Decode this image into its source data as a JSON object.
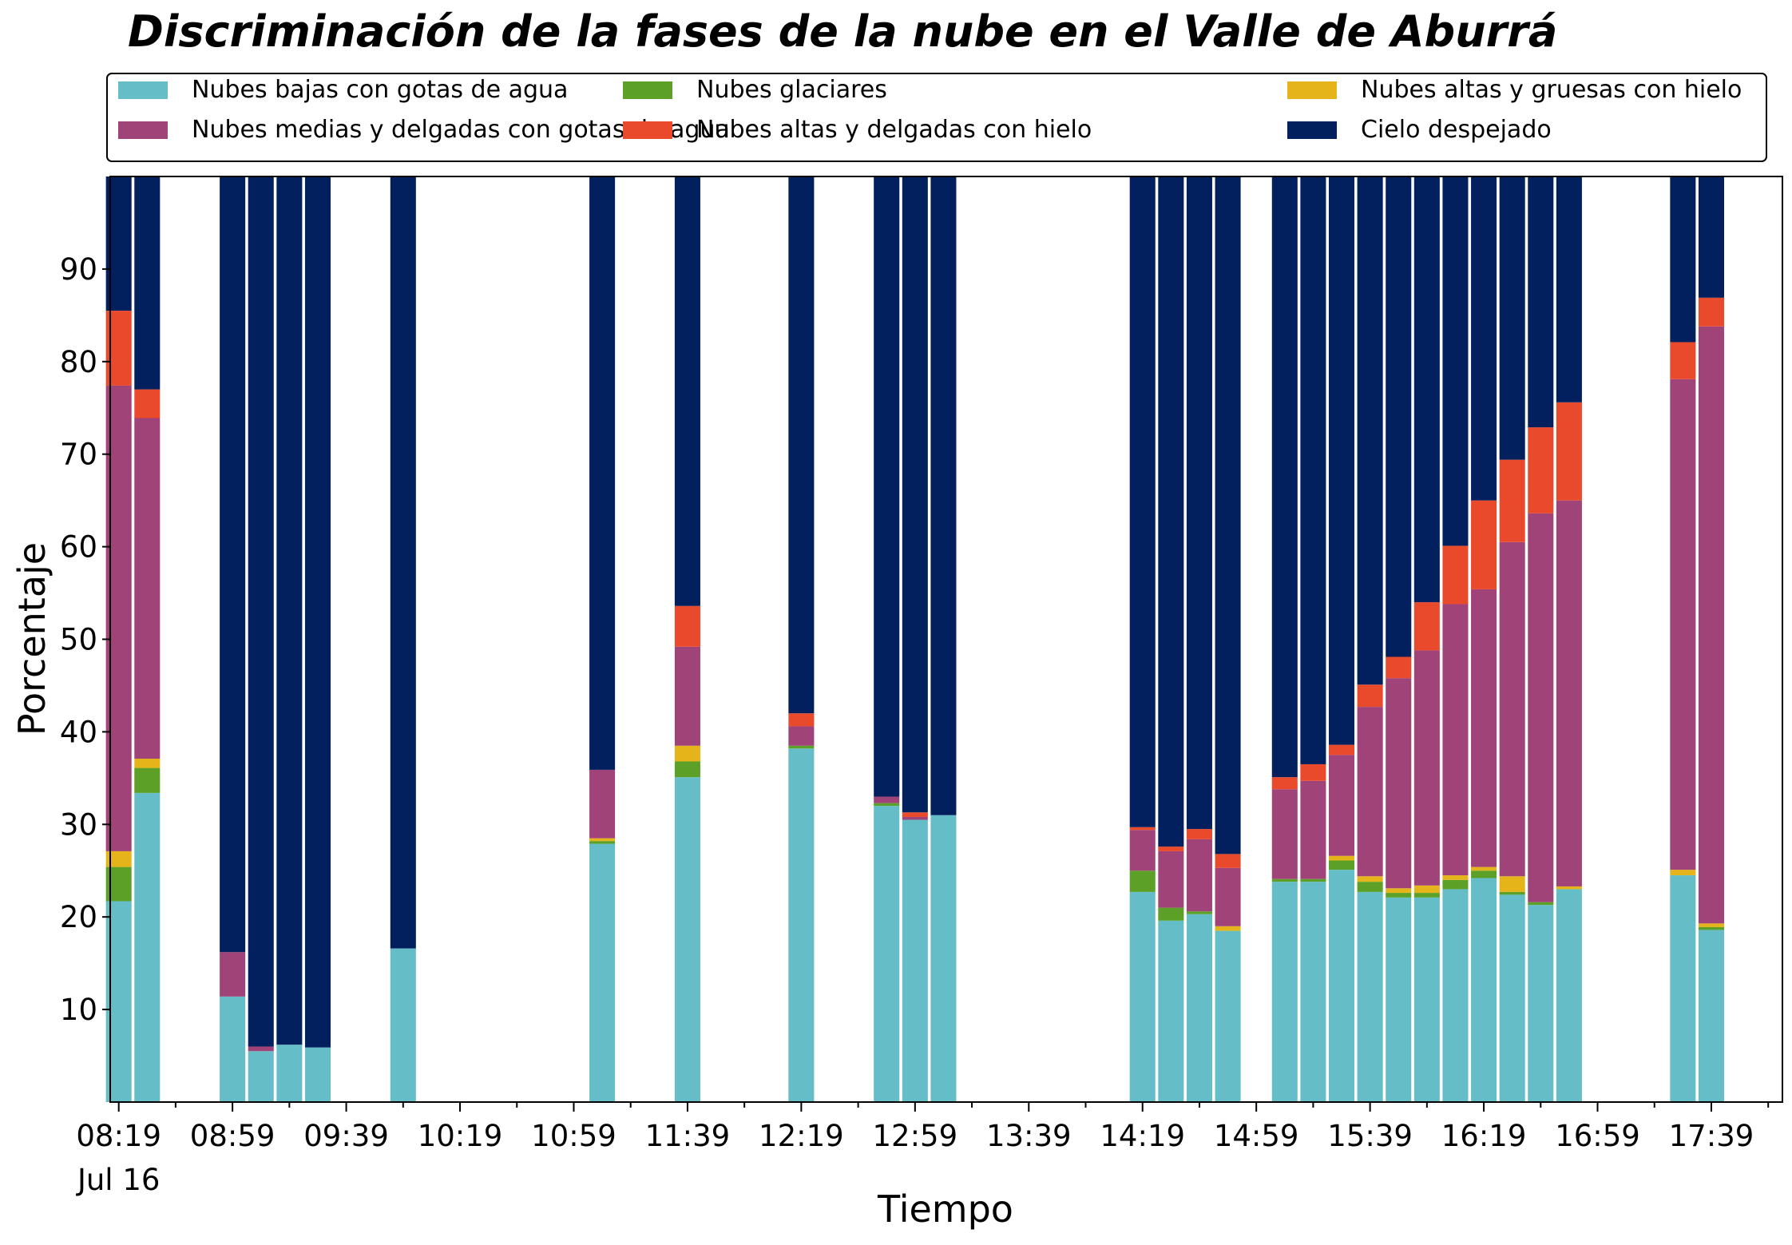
{
  "chart_data": {
    "type": "bar",
    "stacked": true,
    "title": "Discriminación de la fases de la nube en el Valle de Aburrá",
    "xlabel": "Tiempo",
    "ylabel": "Porcentaje",
    "ylim": [
      0,
      100
    ],
    "y_ticks": [
      10,
      20,
      30,
      40,
      50,
      60,
      70,
      80,
      90
    ],
    "x_tick_labels": [
      "08:19",
      "08:59",
      "09:39",
      "10:19",
      "10:59",
      "11:39",
      "12:19",
      "12:59",
      "13:39",
      "14:19",
      "14:59",
      "15:39",
      "16:19",
      "16:59",
      "17:39"
    ],
    "x_date_label": "Jul 16",
    "x_range_minutes": [
      496,
      1084
    ],
    "x_tick_start_minute": 499,
    "x_tick_step_minutes": 40,
    "x_minor_step_minutes": 20,
    "bar_width_minutes": 9,
    "legend_position": "top",
    "grid": false,
    "series": [
      {
        "name": "Nubes bajas con gotas de agua",
        "color": "#65bdc8"
      },
      {
        "name": "Nubes glaciares",
        "color": "#5ca028"
      },
      {
        "name": "Nubes altas y gruesas con hielo",
        "color": "#e4b41a"
      },
      {
        "name": "Nubes medias y delgadas con gotas de agua",
        "color": "#a04378"
      },
      {
        "name": "Nubes altas y delgadas con hielo",
        "color": "#ea4a2c"
      },
      {
        "name": "Cielo despejado",
        "color": "#03205e"
      }
    ],
    "bars": [
      {
        "x": "08:19",
        "values": [
          21.7,
          3.7,
          1.7,
          50.3,
          8.1,
          14.5
        ]
      },
      {
        "x": "08:29",
        "values": [
          33.4,
          2.7,
          1.0,
          36.8,
          3.1,
          23.0
        ]
      },
      {
        "x": "08:59",
        "values": [
          11.4,
          0,
          0,
          4.8,
          0,
          83.8
        ]
      },
      {
        "x": "09:09",
        "values": [
          5.5,
          0,
          0,
          0.5,
          0,
          94.0
        ]
      },
      {
        "x": "09:19",
        "values": [
          6.2,
          0,
          0,
          0,
          0,
          93.8
        ]
      },
      {
        "x": "09:29",
        "values": [
          5.9,
          0,
          0,
          0,
          0,
          94.1
        ]
      },
      {
        "x": "09:59",
        "values": [
          16.6,
          0,
          0,
          0,
          0,
          83.4
        ]
      },
      {
        "x": "11:09",
        "values": [
          27.9,
          0.3,
          0.3,
          7.4,
          0,
          64.1
        ]
      },
      {
        "x": "11:39",
        "values": [
          35.1,
          1.7,
          1.7,
          10.7,
          4.4,
          46.4
        ]
      },
      {
        "x": "12:19",
        "values": [
          38.2,
          0.3,
          0,
          2.1,
          1.4,
          58.0
        ]
      },
      {
        "x": "12:49",
        "values": [
          32.0,
          0.3,
          0,
          0.7,
          0,
          67.0
        ]
      },
      {
        "x": "12:59",
        "values": [
          30.5,
          0,
          0,
          0.3,
          0.5,
          68.7
        ]
      },
      {
        "x": "13:09",
        "values": [
          31.0,
          0,
          0,
          0,
          0,
          69.0
        ]
      },
      {
        "x": "14:19",
        "values": [
          22.7,
          2.3,
          0,
          4.4,
          0.3,
          70.3
        ]
      },
      {
        "x": "14:29",
        "values": [
          19.6,
          1.4,
          0,
          6.1,
          0.5,
          72.4
        ]
      },
      {
        "x": "14:39",
        "values": [
          20.3,
          0.3,
          0,
          7.8,
          1.1,
          70.5
        ]
      },
      {
        "x": "14:49",
        "values": [
          18.5,
          0,
          0.5,
          6.3,
          1.5,
          73.2
        ]
      },
      {
        "x": "15:09",
        "values": [
          23.8,
          0.3,
          0,
          9.7,
          1.3,
          64.9
        ]
      },
      {
        "x": "15:19",
        "values": [
          23.8,
          0.3,
          0,
          10.6,
          1.8,
          63.5
        ]
      },
      {
        "x": "15:29",
        "values": [
          25.1,
          1.0,
          0.5,
          10.9,
          1.1,
          61.4
        ]
      },
      {
        "x": "15:39",
        "values": [
          22.7,
          1.1,
          0.6,
          18.3,
          2.4,
          54.9
        ]
      },
      {
        "x": "15:49",
        "values": [
          22.1,
          0.5,
          0.5,
          22.7,
          2.3,
          51.9
        ]
      },
      {
        "x": "15:59",
        "values": [
          22.1,
          0.5,
          0.8,
          25.4,
          5.2,
          46.0
        ]
      },
      {
        "x": "16:09",
        "values": [
          23.0,
          1.0,
          0.5,
          29.3,
          6.3,
          39.9
        ]
      },
      {
        "x": "16:19",
        "values": [
          24.2,
          0.8,
          0.4,
          30.0,
          9.6,
          35.0
        ]
      },
      {
        "x": "16:29",
        "values": [
          22.4,
          0.3,
          1.7,
          36.1,
          8.9,
          30.6
        ]
      },
      {
        "x": "16:39",
        "values": [
          21.3,
          0.3,
          0,
          42.0,
          9.3,
          27.1
        ]
      },
      {
        "x": "16:49",
        "values": [
          23.0,
          0,
          0.3,
          41.7,
          10.6,
          24.4
        ]
      },
      {
        "x": "17:29",
        "values": [
          24.5,
          0,
          0.6,
          53.0,
          4.0,
          17.9
        ]
      },
      {
        "x": "17:39",
        "values": [
          18.6,
          0.3,
          0.4,
          64.5,
          3.1,
          13.1
        ]
      }
    ]
  }
}
